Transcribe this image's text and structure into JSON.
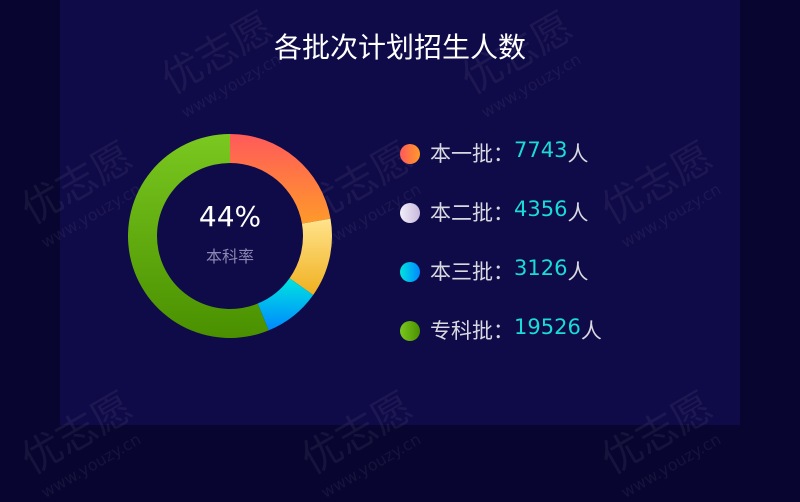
{
  "watermark": {
    "brand": "优志愿",
    "url": "www.youzy.cn"
  },
  "chart_data": {
    "type": "pie",
    "title": "各批次计划招生人数",
    "center_value": "44%",
    "center_label": "本科率",
    "unit": "人",
    "legend_placement": "right",
    "slices": [
      {
        "name": "本一批",
        "value": 7743,
        "colors": [
          "#ff5a5a",
          "#ff9a2a"
        ]
      },
      {
        "name": "本二批",
        "value": 4356,
        "colors": [
          "#ffe38c",
          "#f0b020"
        ],
        "legend_colors": [
          "#f2eefa",
          "#c8b8dc"
        ]
      },
      {
        "name": "本三批",
        "value": 3126,
        "colors": [
          "#00e4e0",
          "#0088ff"
        ]
      },
      {
        "name": "专科批",
        "value": 19526,
        "colors": [
          "#7ac820",
          "#4a9000"
        ]
      }
    ]
  }
}
